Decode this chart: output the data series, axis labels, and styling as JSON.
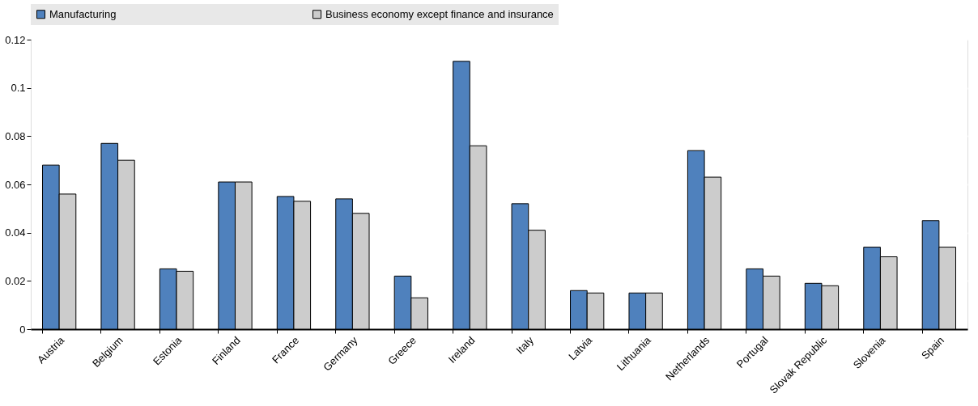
{
  "chart_data": {
    "type": "bar",
    "categories": [
      "Austria",
      "Belgium",
      "Estonia",
      "Finland",
      "France",
      "Germany",
      "Greece",
      "Ireland",
      "Italy",
      "Latvia",
      "Lithuania",
      "Netherlands",
      "Portugal",
      "Slovak Republic",
      "Slovenia",
      "Spain"
    ],
    "series": [
      {
        "name": "Manufacturing",
        "color": "#4f81bd",
        "values": [
          0.068,
          0.077,
          0.025,
          0.061,
          0.055,
          0.054,
          0.022,
          0.111,
          0.052,
          0.016,
          0.015,
          0.074,
          0.025,
          0.019,
          0.034,
          0.045
        ]
      },
      {
        "name": "Business economy except finance and insurance",
        "color": "#cccccc",
        "values": [
          0.056,
          0.07,
          0.024,
          0.061,
          0.053,
          0.048,
          0.013,
          0.076,
          0.041,
          0.015,
          0.015,
          0.063,
          0.022,
          0.018,
          0.03,
          0.034
        ]
      }
    ],
    "ylim": [
      0,
      0.12
    ],
    "yticks": [
      0,
      0.02,
      0.04,
      0.06,
      0.08,
      0.1,
      0.12
    ],
    "grid": true,
    "legend": "top"
  }
}
